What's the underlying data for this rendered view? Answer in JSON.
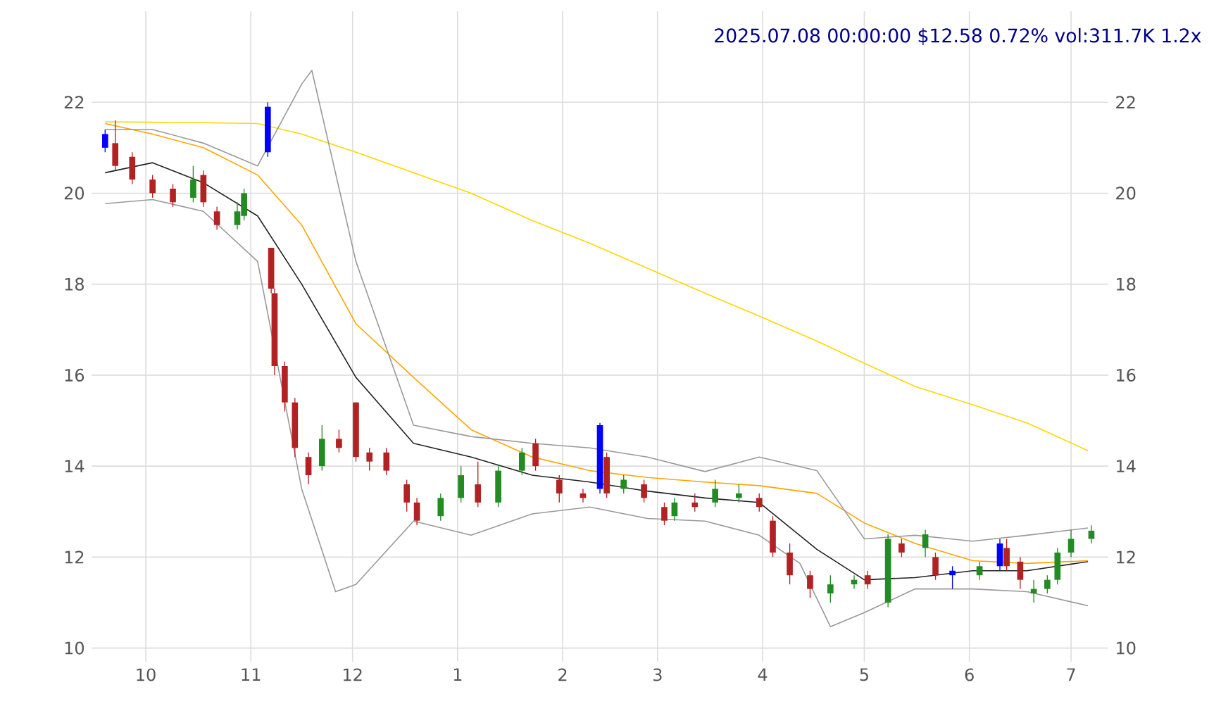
{
  "chart_data": {
    "type": "candlestick",
    "title": "2025.07.08 00:00:00 $12.58 0.72% vol:311.7K 1.2x",
    "x": [
      "2024-09-19",
      "2024-09-22",
      "2024-09-27",
      "2024-10-03",
      "2024-10-09",
      "2024-10-15",
      "2024-10-18",
      "2024-10-22",
      "2024-10-28",
      "2024-10-30",
      "2024-11-06",
      "2024-11-07",
      "2024-11-08",
      "2024-11-11",
      "2024-11-14",
      "2024-11-18",
      "2024-11-22",
      "2024-11-27",
      "2024-12-02",
      "2024-12-06",
      "2024-12-11",
      "2024-12-17",
      "2024-12-20",
      "2024-12-27",
      "2025-01-02",
      "2025-01-07",
      "2025-01-13",
      "2025-01-20",
      "2025-01-24",
      "2025-01-31",
      "2025-02-07",
      "2025-02-12",
      "2025-02-14",
      "2025-02-19",
      "2025-02-25",
      "2025-03-03",
      "2025-03-06",
      "2025-03-12",
      "2025-03-18",
      "2025-03-25",
      "2025-03-31",
      "2025-04-04",
      "2025-04-09",
      "2025-04-15",
      "2025-04-21",
      "2025-04-28",
      "2025-05-02",
      "2025-05-08",
      "2025-05-12",
      "2025-05-19",
      "2025-05-22",
      "2025-05-27",
      "2025-06-04",
      "2025-06-10",
      "2025-06-12",
      "2025-06-16",
      "2025-06-20",
      "2025-06-24",
      "2025-06-27",
      "2025-07-01",
      "2025-07-07"
    ],
    "ohlc": [
      [
        21.0,
        21.4,
        20.9,
        21.3
      ],
      [
        21.1,
        21.6,
        20.5,
        20.6
      ],
      [
        20.8,
        20.9,
        20.2,
        20.3
      ],
      [
        20.3,
        20.4,
        19.9,
        20.0
      ],
      [
        20.1,
        20.2,
        19.7,
        19.8
      ],
      [
        19.9,
        20.6,
        19.8,
        20.3
      ],
      [
        20.4,
        20.5,
        19.7,
        19.8
      ],
      [
        19.6,
        19.7,
        19.2,
        19.3
      ],
      [
        19.3,
        19.8,
        19.2,
        19.6
      ],
      [
        19.5,
        20.1,
        19.4,
        20.0
      ],
      [
        20.9,
        22.0,
        20.8,
        21.9
      ],
      [
        18.8,
        18.8,
        17.8,
        17.9
      ],
      [
        17.8,
        17.9,
        16.0,
        16.2
      ],
      [
        16.2,
        16.3,
        15.2,
        15.4
      ],
      [
        15.4,
        15.5,
        14.2,
        14.4
      ],
      [
        14.2,
        14.3,
        13.6,
        13.8
      ],
      [
        14.0,
        14.9,
        13.9,
        14.6
      ],
      [
        14.6,
        14.8,
        14.3,
        14.4
      ],
      [
        15.4,
        15.4,
        14.1,
        14.2
      ],
      [
        14.3,
        14.4,
        13.9,
        14.1
      ],
      [
        14.3,
        14.4,
        13.8,
        13.9
      ],
      [
        13.6,
        13.7,
        13.0,
        13.2
      ],
      [
        13.2,
        13.3,
        12.7,
        12.8
      ],
      [
        12.9,
        13.4,
        12.8,
        13.3
      ],
      [
        13.3,
        14.0,
        13.2,
        13.8
      ],
      [
        13.6,
        14.1,
        13.1,
        13.2
      ],
      [
        13.2,
        14.0,
        13.1,
        13.9
      ],
      [
        13.9,
        14.4,
        13.8,
        14.3
      ],
      [
        14.5,
        14.6,
        13.9,
        14.0
      ],
      [
        13.7,
        13.8,
        13.2,
        13.4
      ],
      [
        13.4,
        13.5,
        13.2,
        13.3
      ],
      [
        13.5,
        14.95,
        13.4,
        14.9
      ],
      [
        14.2,
        14.3,
        13.3,
        13.4
      ],
      [
        13.5,
        13.8,
        13.4,
        13.7
      ],
      [
        13.6,
        13.7,
        13.2,
        13.3
      ],
      [
        13.1,
        13.2,
        12.7,
        12.8
      ],
      [
        12.9,
        13.3,
        12.8,
        13.2
      ],
      [
        13.2,
        13.4,
        13.0,
        13.1
      ],
      [
        13.2,
        13.7,
        13.1,
        13.5
      ],
      [
        13.3,
        13.6,
        13.2,
        13.4
      ],
      [
        13.3,
        13.4,
        13.0,
        13.1
      ],
      [
        12.8,
        12.9,
        12.0,
        12.1
      ],
      [
        12.1,
        12.3,
        11.4,
        11.6
      ],
      [
        11.6,
        11.7,
        11.1,
        11.3
      ],
      [
        11.2,
        11.6,
        11.0,
        11.4
      ],
      [
        11.4,
        11.6,
        11.3,
        11.5
      ],
      [
        11.6,
        11.7,
        11.3,
        11.4
      ],
      [
        11.0,
        12.5,
        10.9,
        12.4
      ],
      [
        12.3,
        12.4,
        12.0,
        12.1
      ],
      [
        12.2,
        12.6,
        12.0,
        12.5
      ],
      [
        12.0,
        12.1,
        11.5,
        11.6
      ],
      [
        11.7,
        11.8,
        11.3,
        11.6
      ],
      [
        11.6,
        11.9,
        11.5,
        11.8
      ],
      [
        11.8,
        12.4,
        11.7,
        12.3
      ],
      [
        12.2,
        12.4,
        11.7,
        11.8
      ],
      [
        11.9,
        12.0,
        11.3,
        11.5
      ],
      [
        11.2,
        11.5,
        11.0,
        11.3
      ],
      [
        11.3,
        11.6,
        11.2,
        11.5
      ],
      [
        11.5,
        12.2,
        11.4,
        12.1
      ],
      [
        12.1,
        12.6,
        12.0,
        12.4
      ],
      [
        12.4,
        12.7,
        12.3,
        12.58
      ]
    ],
    "colors": [
      "#0000ff",
      "#b22222",
      "#b22222",
      "#b22222",
      "#b22222",
      "#228b22",
      "#b22222",
      "#b22222",
      "#228b22",
      "#228b22",
      "#0000ff",
      "#b22222",
      "#b22222",
      "#b22222",
      "#b22222",
      "#b22222",
      "#228b22",
      "#b22222",
      "#b22222",
      "#b22222",
      "#b22222",
      "#b22222",
      "#b22222",
      "#228b22",
      "#228b22",
      "#b22222",
      "#228b22",
      "#228b22",
      "#b22222",
      "#b22222",
      "#b22222",
      "#0000ff",
      "#b22222",
      "#228b22",
      "#b22222",
      "#b22222",
      "#228b22",
      "#b22222",
      "#228b22",
      "#228b22",
      "#b22222",
      "#b22222",
      "#b22222",
      "#b22222",
      "#228b22",
      "#228b22",
      "#b22222",
      "#228b22",
      "#b22222",
      "#228b22",
      "#b22222",
      "#0000ff",
      "#228b22",
      "#0000ff",
      "#b22222",
      "#b22222",
      "#228b22",
      "#228b22",
      "#228b22",
      "#228b22",
      "#228b22"
    ],
    "series": [
      {
        "type": "line",
        "color": "#222222",
        "x": [
          "2024-09-19",
          "2024-10-03",
          "2024-10-18",
          "2024-11-03",
          "2024-11-16",
          "2024-12-02",
          "2024-12-19",
          "2025-01-05",
          "2025-01-23",
          "2025-02-09",
          "2025-02-26",
          "2025-03-15",
          "2025-03-31",
          "2025-04-17",
          "2025-05-01",
          "2025-05-16",
          "2025-06-02",
          "2025-06-18",
          "2025-07-06"
        ],
        "values": [
          20.45,
          20.67,
          20.23,
          19.5,
          18.0,
          15.95,
          14.5,
          14.2,
          13.8,
          13.65,
          13.45,
          13.3,
          13.2,
          12.17,
          11.5,
          11.55,
          11.7,
          11.7,
          11.9
        ]
      },
      {
        "type": "line",
        "color": "#ffa500",
        "x": [
          "2024-09-19",
          "2024-10-03",
          "2024-10-18",
          "2024-11-03",
          "2024-11-16",
          "2024-12-02",
          "2024-12-19",
          "2025-01-05",
          "2025-01-23",
          "2025-02-09",
          "2025-02-26",
          "2025-03-15",
          "2025-03-31",
          "2025-04-17",
          "2025-05-01",
          "2025-05-16",
          "2025-06-02",
          "2025-06-18",
          "2025-07-06"
        ],
        "values": [
          21.53,
          21.3,
          21.0,
          20.4,
          19.3,
          17.13,
          15.95,
          14.8,
          14.2,
          13.9,
          13.75,
          13.65,
          13.57,
          13.4,
          12.75,
          12.3,
          11.92,
          11.86,
          11.92
        ]
      },
      {
        "type": "line",
        "color": "#ffd700",
        "x": [
          "2024-09-19",
          "2024-10-03",
          "2024-10-18",
          "2024-11-03",
          "2024-11-16",
          "2024-12-02",
          "2024-12-19",
          "2025-01-05",
          "2025-01-23",
          "2025-02-09",
          "2025-02-26",
          "2025-03-15",
          "2025-03-31",
          "2025-04-17",
          "2025-05-01",
          "2025-05-16",
          "2025-06-02",
          "2025-06-18",
          "2025-07-06"
        ],
        "values": [
          21.57,
          21.56,
          21.55,
          21.53,
          21.3,
          20.9,
          20.45,
          20.0,
          19.4,
          18.9,
          18.35,
          17.8,
          17.3,
          16.75,
          16.26,
          15.75,
          15.35,
          14.95,
          14.34
        ]
      },
      {
        "type": "line",
        "color": "#999999",
        "x": [
          "2024-09-19",
          "2024-10-03",
          "2024-10-18",
          "2024-11-03",
          "2024-11-16",
          "2024-11-19",
          "2024-12-02",
          "2024-12-19",
          "2025-01-05",
          "2025-01-23",
          "2025-02-09",
          "2025-02-26",
          "2025-03-15",
          "2025-03-31",
          "2025-04-17",
          "2025-05-01",
          "2025-05-16",
          "2025-06-02",
          "2025-06-18",
          "2025-07-06"
        ],
        "values": [
          21.4,
          21.4,
          21.1,
          20.6,
          22.4,
          22.7,
          18.5,
          14.9,
          14.65,
          14.5,
          14.4,
          14.2,
          13.88,
          14.2,
          13.9,
          12.4,
          12.48,
          12.35,
          12.48,
          12.64
        ]
      },
      {
        "type": "line",
        "color": "#999999",
        "x": [
          "2024-09-19",
          "2024-10-03",
          "2024-10-18",
          "2024-11-03",
          "2024-11-16",
          "2024-11-26",
          "2024-12-02",
          "2024-12-19",
          "2025-01-05",
          "2025-01-23",
          "2025-02-09",
          "2025-02-26",
          "2025-03-15",
          "2025-03-31",
          "2025-04-12",
          "2025-04-21",
          "2025-05-01",
          "2025-05-16",
          "2025-06-02",
          "2025-06-18",
          "2025-07-06"
        ],
        "values": [
          19.77,
          19.86,
          19.6,
          18.5,
          13.5,
          11.24,
          11.4,
          12.79,
          12.48,
          12.95,
          13.1,
          12.85,
          12.79,
          12.48,
          11.86,
          10.47,
          10.78,
          11.3,
          11.3,
          11.24,
          10.93
        ]
      }
    ],
    "xlim": [
      "2024-09-15",
      "2025-07-12"
    ],
    "xticks": [
      {
        "value": "2024-10-01",
        "label": "10"
      },
      {
        "value": "2024-11-01",
        "label": "11"
      },
      {
        "value": "2024-12-01",
        "label": "12"
      },
      {
        "value": "2025-01-01",
        "label": "1"
      },
      {
        "value": "2025-02-01",
        "label": "2"
      },
      {
        "value": "2025-03-01",
        "label": "3"
      },
      {
        "value": "2025-04-01",
        "label": "4"
      },
      {
        "value": "2025-05-01",
        "label": "5"
      },
      {
        "value": "2025-06-01",
        "label": "6"
      },
      {
        "value": "2025-07-01",
        "label": "7"
      }
    ],
    "ylim": [
      9.7,
      24
    ],
    "yticks": [
      10,
      12,
      14,
      16,
      18,
      20,
      22
    ],
    "y2lim": [
      9.7,
      24
    ],
    "y2ticks": [
      10,
      12,
      14,
      16,
      18,
      20,
      22
    ],
    "grid": true
  }
}
